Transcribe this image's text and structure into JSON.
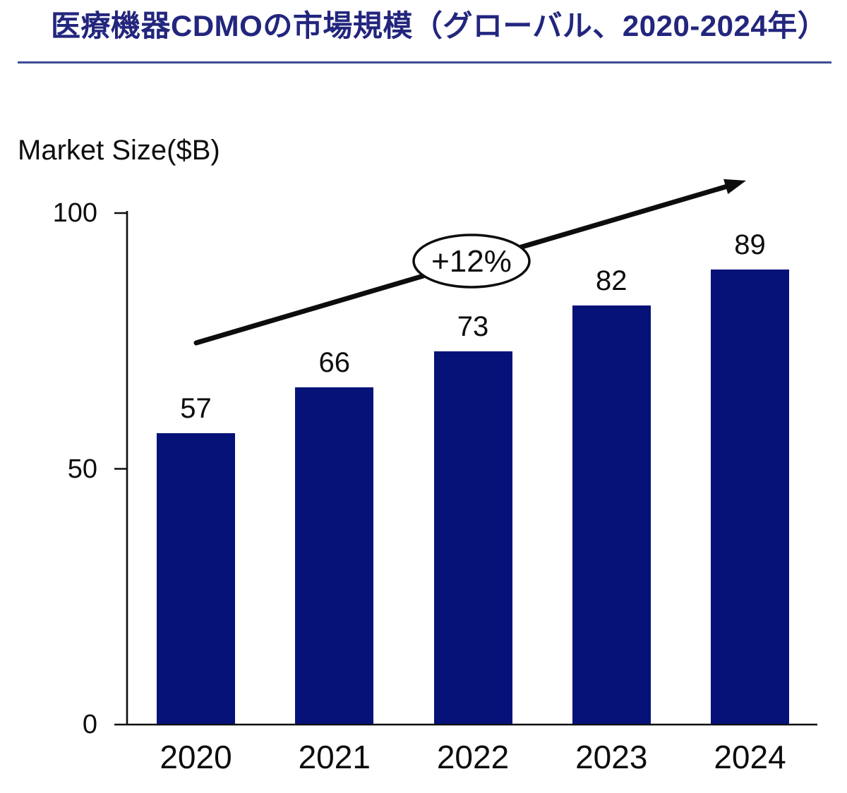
{
  "header": {
    "title": "医療機器CDMOの市場規模（グローバル、2020-2024年）"
  },
  "colors": {
    "title": "#23267d",
    "rule": "#3e4c94",
    "bar": "#061278",
    "text": "#0d0d0d",
    "background": "#ffffff"
  },
  "chart_data": {
    "type": "bar",
    "title": "医療機器CDMOの市場規模（グローバル、2020-2024年）",
    "ylabel": "Market Size($B)",
    "xlabel": "",
    "categories": [
      "2020",
      "2021",
      "2022",
      "2023",
      "2024"
    ],
    "values": [
      57,
      66,
      73,
      82,
      89
    ],
    "yticks": [
      0,
      50,
      100
    ],
    "ylim": [
      0,
      100
    ],
    "grid": false,
    "legend": "none",
    "annotation": "+12%",
    "annotation_note": "CAGR growth arrow from first bar to last bar",
    "bar_color": "#061278"
  }
}
